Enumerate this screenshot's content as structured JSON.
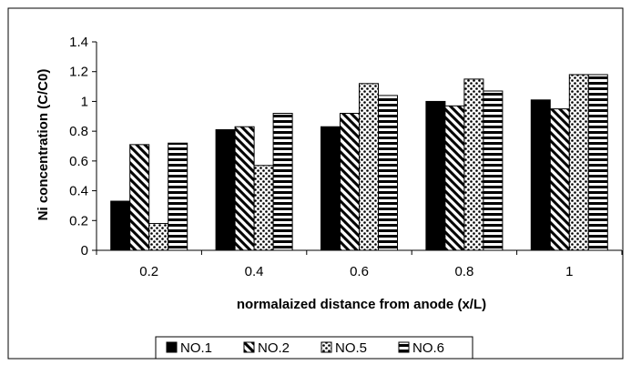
{
  "chart_data": {
    "type": "bar",
    "title": "",
    "xlabel": "normalaized distance from anode (x/L)",
    "ylabel": "Ni concentration (C/C0)",
    "categories": [
      "0.2",
      "0.4",
      "0.6",
      "0.8",
      "1"
    ],
    "yticks": [
      "0",
      "0.2",
      "0.4",
      "0.6",
      "0.8",
      "1",
      "1.2",
      "1.4"
    ],
    "ylim": [
      0,
      1.4
    ],
    "grid": "none",
    "legend_position": "bottom",
    "series": [
      {
        "name": "NO.1",
        "pattern": "solid",
        "values": [
          0.33,
          0.81,
          0.83,
          1.0,
          1.01
        ]
      },
      {
        "name": "NO.2",
        "pattern": "diagonal",
        "values": [
          0.71,
          0.83,
          0.92,
          0.97,
          0.95
        ]
      },
      {
        "name": "NO.5",
        "pattern": "dotted",
        "values": [
          0.18,
          0.57,
          1.12,
          1.15,
          1.18
        ]
      },
      {
        "name": "NO.6",
        "pattern": "horizontal",
        "values": [
          0.72,
          0.92,
          1.04,
          1.07,
          1.18
        ]
      }
    ]
  }
}
